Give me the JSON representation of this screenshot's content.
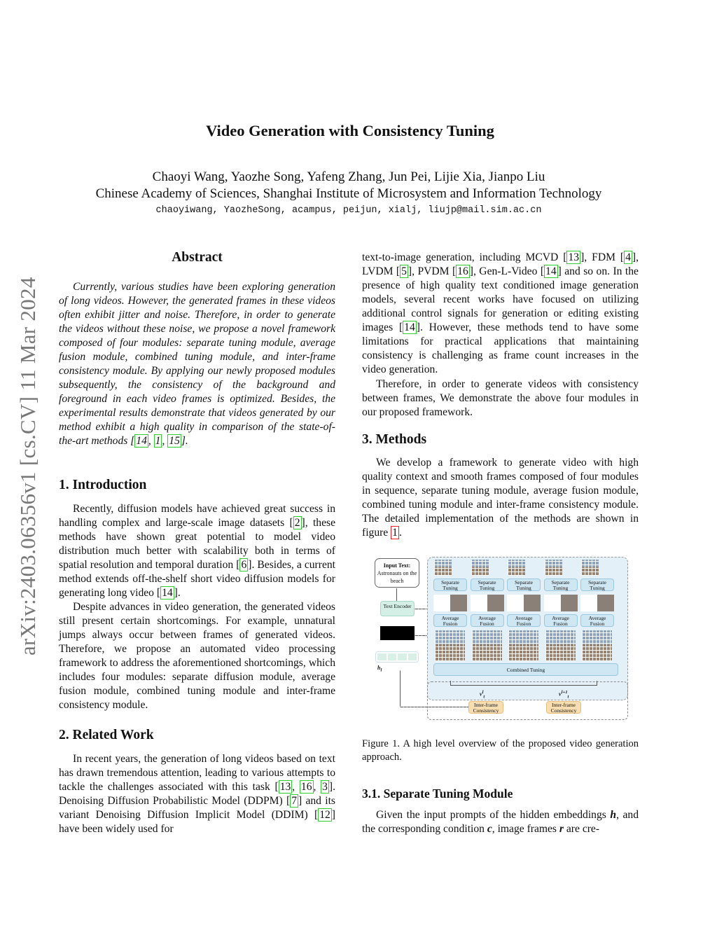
{
  "title": "Video Generation with Consistency Tuning",
  "authors": "Chaoyi Wang, Yaozhe Song, Yafeng Zhang, Jun Pei, Lijie Xia, Jianpo Liu",
  "affiliation": "Chinese Academy of Sciences, Shanghai Institute of Microsystem and Information Technology",
  "emails": "chaoyiwang, YaozheSong, acampus, peijun, xialj, liujp@mail.sim.ac.cn",
  "arxiv_stamp": "arXiv:2403.06356v1  [cs.CV]  11 Mar 2024",
  "colors": {
    "cite_box": "#33cc33",
    "figref_box": "#ee2222",
    "stamp": "#777777"
  },
  "sections": {
    "abstract_heading": "Abstract",
    "intro_heading": "1. Introduction",
    "related_heading": "2. Related Work",
    "methods_heading": "3. Methods",
    "sep_heading": "3.1. Separate Tuning Module"
  },
  "paragraphs": {
    "abstract": [
      "Currently, various studies have been exploring generation of long videos. However, the generated frames in these videos often exhibit jitter and noise.  Therefore, in order to generate the videos without these noise, we propose a novel framework composed of four modules: separate tuning module, average fusion module, combined tuning module, and inter-frame consistency module.  By applying our newly proposed modules subsequently, the consistency of the background and foreground in each video frames is optimized. Besides, the experimental results demonstrate that videos generated by our method exhibit a high quality in comparison of the state-of-the-art methods [",
      {
        "cite": "14"
      },
      ", ",
      {
        "cite": "1"
      },
      ", ",
      {
        "cite": "15"
      },
      "]."
    ],
    "intro1": [
      "Recently, diffusion models have achieved great success in handling complex and large-scale image datasets [",
      {
        "cite": "2"
      },
      "], these methods have shown great potential to model video distribution much better with scalability both in terms of spatial resolution and temporal duration [",
      {
        "cite": "6"
      },
      "].  Besides, a current method extends off-the-shelf short video diffusion models for generating long video [",
      {
        "cite": "14"
      },
      "]."
    ],
    "intro2": [
      "Despite advances in video generation, the generated videos still present certain shortcomings. For example, unnatural jumps always occur between frames of generated videos. Therefore, we propose an automated video processing framework to address the aforementioned shortcomings, which includes four modules:  separate diffusion module, average fusion module, combined tuning module and inter-frame consistency module."
    ],
    "related1": [
      "In recent years, the generation of long videos based on text has drawn tremendous attention, leading to various attempts to tackle the challenges associated with this task [",
      {
        "cite": "13"
      },
      ", ",
      {
        "cite": "16"
      },
      ", ",
      {
        "cite": "3"
      },
      "].  Denoising Diffusion Probabilistic Model (DDPM) [",
      {
        "cite": "7"
      },
      "] and its variant Denoising Diffusion Implicit Model (DDIM) [",
      {
        "cite": "12"
      },
      "] have been widely used for"
    ],
    "right1": [
      "text-to-image generation, including MCVD [",
      {
        "cite": "13"
      },
      "], FDM [",
      {
        "cite": "4"
      },
      "], LVDM [",
      {
        "cite": "5"
      },
      "], PVDM [",
      {
        "cite": "16"
      },
      "], Gen-L-Video [",
      {
        "cite": "14"
      },
      "] and so on.  In the presence of high quality text conditioned image generation models, several recent works have focused on utilizing additional control signals for generation or editing existing images [",
      {
        "cite": "14"
      },
      "].  However, these methods tend to have some limitations for practical applications that maintaining consistency is challenging as frame count increases in the video generation."
    ],
    "right2": [
      "Therefore, in order to generate videos with consistency between frames, We demonstrate the above four modules in our proposed framework."
    ],
    "methods1": [
      "We develop a framework to generate video with high quality context and smooth frames composed of four modules in sequence, separate tuning module, average fusion module, combined tuning module and inter-frame consistency module. The detailed implementation of the methods are shown in figure ",
      {
        "figref": "1"
      },
      "."
    ],
    "sep1": [
      "Given the input prompts of the hidden embeddings ",
      {
        "m": "h"
      },
      ", and the corresponding condition ",
      {
        "m": "c"
      },
      ", image frames ",
      {
        "m": "r"
      },
      " are cre-"
    ]
  },
  "figure": {
    "input_text_label": "Input Text:",
    "input_text": "Astronauts on the beach",
    "text_encoder": "Text Encoder",
    "h_label": "h",
    "h_sub": "l",
    "separate_tuning": [
      "Separate Tuning",
      "Separate Tuning",
      "Separate Tuning",
      "Separate Tuning",
      "Separate Tuning"
    ],
    "average_fusion": [
      "Average Fusion",
      "Average Fusion",
      "Average Fusion",
      "Average Fusion",
      "Average Fusion"
    ],
    "combined_tuning": "Combined Tuning",
    "v1": "v",
    "v1_sup": "l",
    "v1_sub": "t",
    "v2": "v",
    "v2_sup": "l+1",
    "v2_sub": "t",
    "inter_frame": [
      "Inter-frame Consistency",
      "Inter-frame Consistency"
    ],
    "caption": "Figure 1. A high level overview of the proposed video generation approach."
  }
}
